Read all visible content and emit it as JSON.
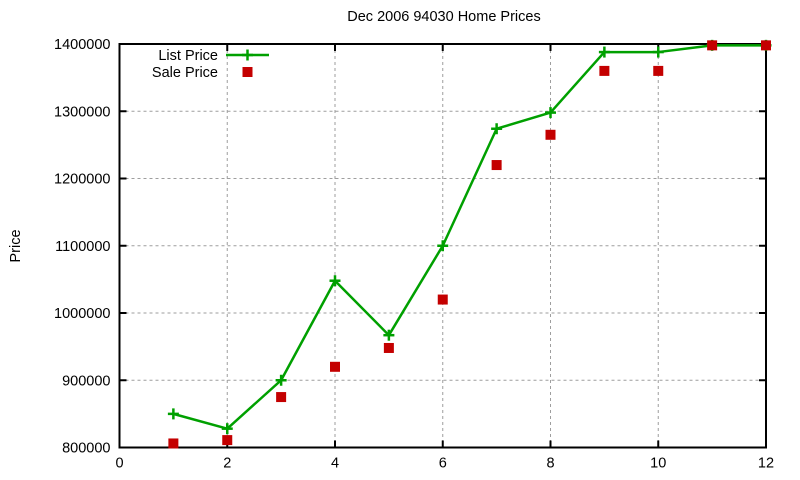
{
  "title": "Dec 2006 94030 Home Prices",
  "chart_data": {
    "type": "line",
    "title": "Dec 2006 94030 Home Prices",
    "xlabel": "",
    "ylabel": "Price",
    "x": [
      1,
      2,
      3,
      4,
      5,
      6,
      7,
      8,
      9,
      10,
      11,
      12
    ],
    "series": [
      {
        "name": "List Price",
        "style": "line-with-plus-markers",
        "color": "#00a000",
        "values": [
          850000,
          828000,
          900000,
          1048000,
          967000,
          1100000,
          1274000,
          1298000,
          1388000,
          1388000,
          1398000,
          1398000
        ]
      },
      {
        "name": "Sale Price",
        "style": "square-markers",
        "color": "#c40000",
        "values": [
          806000,
          811000,
          875000,
          920000,
          948000,
          1020000,
          1220000,
          1265000,
          1360000,
          1360000,
          1398000,
          1398000
        ]
      }
    ],
    "xlim": [
      0,
      12
    ],
    "ylim": [
      800000,
      1400000
    ],
    "xticks": [
      0,
      2,
      4,
      6,
      8,
      10,
      12
    ],
    "yticks": [
      800000,
      900000,
      1000000,
      1100000,
      1200000,
      1300000,
      1400000
    ],
    "grid": true,
    "grid_color": "#9e9e9e",
    "axis_color": "#000000",
    "background": "#ffffff",
    "legend_position": "top-left",
    "legend_entries": [
      "List Price",
      "Sale Price"
    ]
  }
}
